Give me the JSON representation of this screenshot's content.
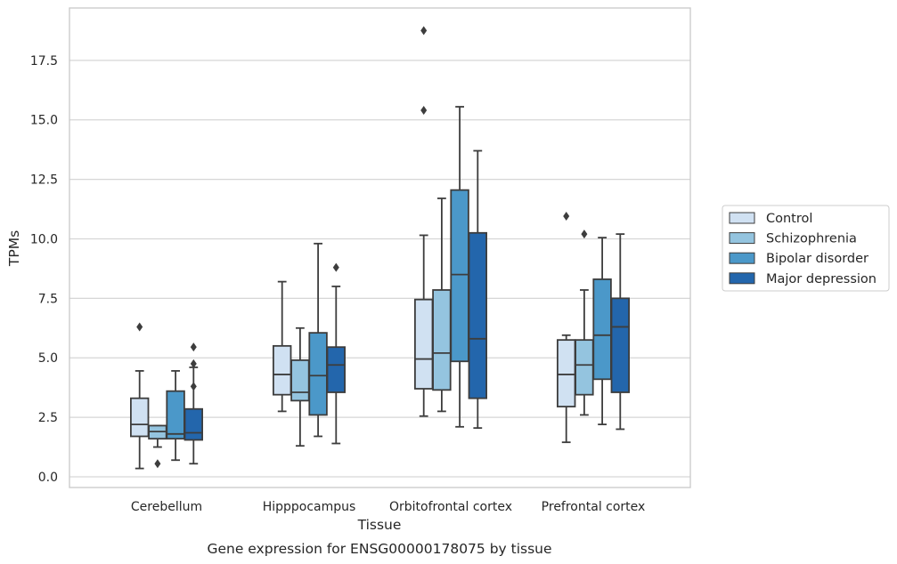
{
  "chart_data": {
    "type": "boxplot",
    "title": "Gene expression for ENSG00000178075 by tissue",
    "xlabel": "Tissue",
    "ylabel": "TPMs",
    "ylim": [
      -0.45,
      19.7
    ],
    "yticks": [
      0.0,
      2.5,
      5.0,
      7.5,
      10.0,
      12.5,
      15.0,
      17.5
    ],
    "ytick_labels": [
      "0.0",
      "2.5",
      "5.0",
      "7.5",
      "10.0",
      "12.5",
      "15.0",
      "17.5"
    ],
    "grid": "horizontal",
    "legend_position": "right",
    "categories": [
      "Cerebellum",
      "Hipppocampus",
      "Orbitofrontal cortex",
      "Prefrontal cortex"
    ],
    "series": [
      {
        "name": "Control",
        "color": "#d0e1f2",
        "boxes": [
          {
            "whislo": 0.35,
            "q1": 1.7,
            "med": 2.2,
            "q3": 3.3,
            "whishi": 4.45,
            "fliers": [
              6.3
            ]
          },
          {
            "whislo": 2.75,
            "q1": 3.45,
            "med": 4.3,
            "q3": 5.5,
            "whishi": 8.2,
            "fliers": []
          },
          {
            "whislo": 2.55,
            "q1": 3.7,
            "med": 4.95,
            "q3": 7.45,
            "whishi": 10.15,
            "fliers": [
              15.4,
              18.75
            ]
          },
          {
            "whislo": 1.45,
            "q1": 2.95,
            "med": 4.3,
            "q3": 5.75,
            "whishi": 5.95,
            "fliers": [
              10.95
            ]
          }
        ]
      },
      {
        "name": "Schizophrenia",
        "color": "#94c4df",
        "boxes": [
          {
            "whislo": 1.25,
            "q1": 1.6,
            "med": 1.9,
            "q3": 2.15,
            "whishi": 2.15,
            "fliers": [
              0.55
            ]
          },
          {
            "whislo": 1.3,
            "q1": 3.2,
            "med": 3.55,
            "q3": 4.9,
            "whishi": 6.25,
            "fliers": []
          },
          {
            "whislo": 2.75,
            "q1": 3.65,
            "med": 5.2,
            "q3": 7.85,
            "whishi": 11.7,
            "fliers": []
          },
          {
            "whislo": 2.6,
            "q1": 3.45,
            "med": 4.7,
            "q3": 5.75,
            "whishi": 7.85,
            "fliers": [
              10.2
            ]
          }
        ]
      },
      {
        "name": "Bipolar disorder",
        "color": "#4b98c9",
        "boxes": [
          {
            "whislo": 0.7,
            "q1": 1.6,
            "med": 1.8,
            "q3": 3.6,
            "whishi": 4.45,
            "fliers": []
          },
          {
            "whislo": 1.7,
            "q1": 2.6,
            "med": 4.25,
            "q3": 6.05,
            "whishi": 9.8,
            "fliers": []
          },
          {
            "whislo": 2.1,
            "q1": 4.85,
            "med": 8.5,
            "q3": 12.05,
            "whishi": 15.55,
            "fliers": []
          },
          {
            "whislo": 2.2,
            "q1": 4.1,
            "med": 5.95,
            "q3": 8.3,
            "whishi": 10.05,
            "fliers": []
          }
        ]
      },
      {
        "name": "Major depression",
        "color": "#2366ac",
        "boxes": [
          {
            "whislo": 0.55,
            "q1": 1.55,
            "med": 1.85,
            "q3": 2.85,
            "whishi": 4.6,
            "fliers": [
              3.8,
              4.75,
              5.45
            ]
          },
          {
            "whislo": 1.4,
            "q1": 3.55,
            "med": 4.7,
            "q3": 5.45,
            "whishi": 8.0,
            "fliers": [
              8.8
            ]
          },
          {
            "whislo": 2.05,
            "q1": 3.3,
            "med": 5.8,
            "q3": 10.25,
            "whishi": 13.7,
            "fliers": []
          },
          {
            "whislo": 2.0,
            "q1": 3.55,
            "med": 6.3,
            "q3": 7.5,
            "whishi": 10.2,
            "fliers": []
          }
        ]
      }
    ]
  }
}
